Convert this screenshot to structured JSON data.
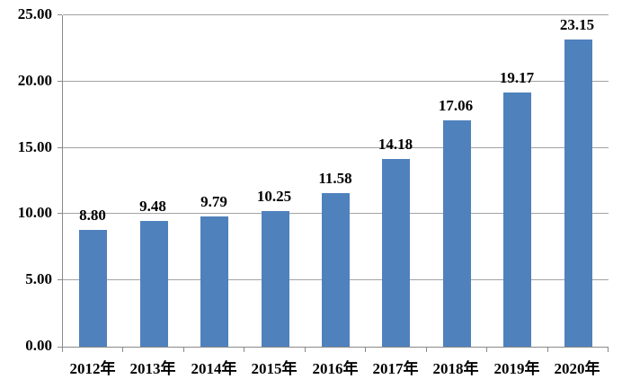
{
  "chart_data": {
    "type": "bar",
    "title": "",
    "xlabel": "",
    "ylabel": "",
    "categories": [
      "2012年",
      "2013年",
      "2014年",
      "2015年",
      "2016年",
      "2017年",
      "2018年",
      "2019年",
      "2020年"
    ],
    "values": [
      8.8,
      9.48,
      9.79,
      10.25,
      11.58,
      14.18,
      17.06,
      19.17,
      23.15
    ],
    "value_labels": [
      "8.80",
      "9.48",
      "9.79",
      "10.25",
      "11.58",
      "14.18",
      "17.06",
      "19.17",
      "23.15"
    ],
    "ylim": [
      0,
      25
    ],
    "ytick_step": 5,
    "ytick_labels": [
      "0.00",
      "5.00",
      "10.00",
      "15.00",
      "20.00",
      "25.00"
    ],
    "grid": true,
    "legend": false,
    "colors": {
      "bar": "#4F81BD",
      "gridline": "#a3a3a3",
      "axis": "#898989",
      "text": "#000000",
      "background": "#ffffff"
    }
  }
}
